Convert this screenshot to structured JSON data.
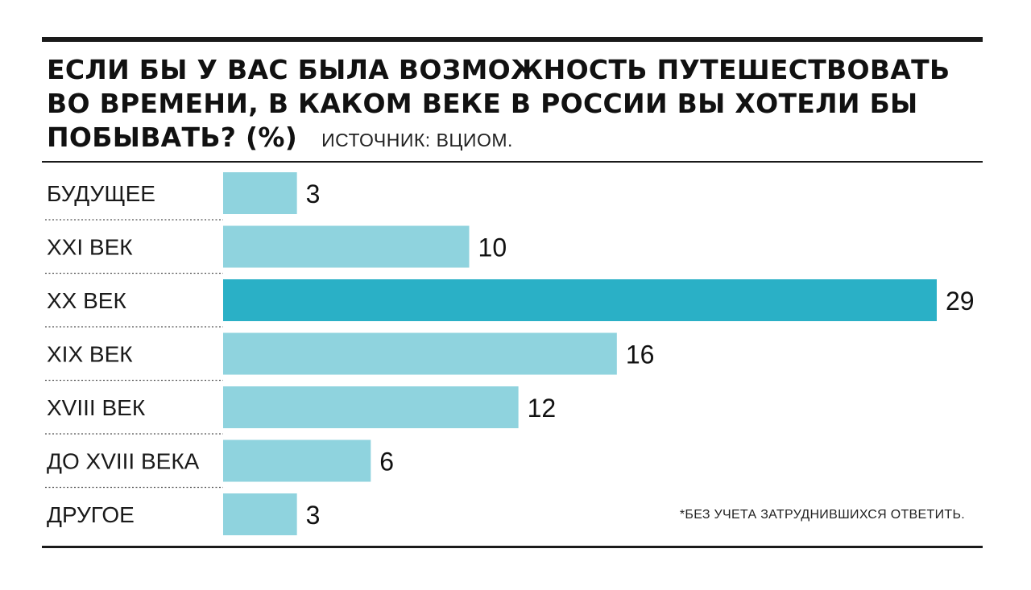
{
  "header": {
    "title_line1": "ЕСЛИ БЫ У ВАС БЫЛА ВОЗМОЖНОСТЬ ПУТЕШЕСТВОВАТЬ",
    "title_line2": "ВО ВРЕМЕНИ, В КАКОМ ВЕКЕ В РОССИИ ВЫ ХОТЕЛИ БЫ",
    "title_line3": "ПОБЫВАТЬ? (%)",
    "source": "ИСТОЧНИК: ВЦИОМ."
  },
  "footnote": "*БЕЗ УЧЕТА ЗАТРУДНИВШИХСЯ ОТВЕТИТЬ.",
  "colors": {
    "bar": "#8fd3de",
    "bar_highlight": "#2ab0c6",
    "text": "#1a1a1a"
  },
  "chart_data": {
    "type": "bar",
    "orientation": "horizontal",
    "title": "ЕСЛИ БЫ У ВАС БЫЛА ВОЗМОЖНОСТЬ ПУТЕШЕСТВОВАТЬ ВО ВРЕМЕНИ, В КАКОМ ВЕКЕ В РОССИИ ВЫ ХОТЕЛИ БЫ ПОБЫВАТЬ? (%)",
    "categories": [
      "БУДУЩЕЕ",
      "XXI ВЕК",
      "XX ВЕК",
      "XIX ВЕК",
      "XVIII ВЕК",
      "ДО XVIII ВЕКА",
      "ДРУГОЕ"
    ],
    "values": [
      3,
      10,
      29,
      16,
      12,
      6,
      3
    ],
    "highlight_index": 2,
    "xlim": [
      0,
      29
    ],
    "grid": false,
    "legend": "none",
    "data_labels": true
  }
}
